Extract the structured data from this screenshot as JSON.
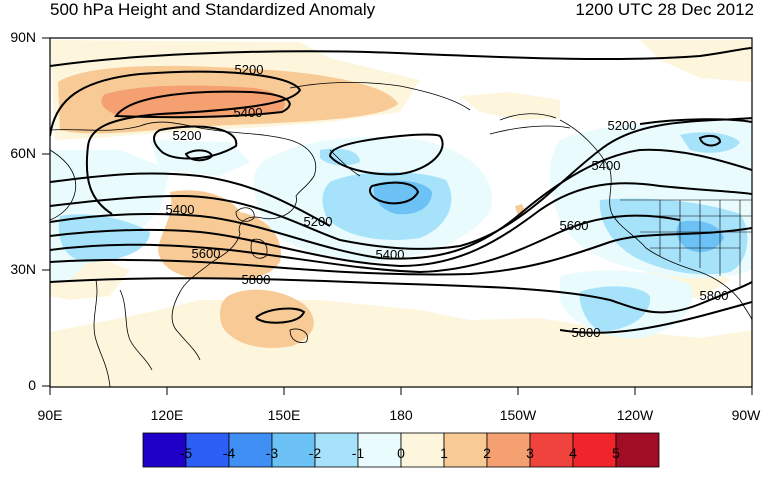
{
  "title": "500 hPa Height and Standardized Anomaly",
  "datetime": "1200 UTC 28 Dec 2012",
  "lat_labels": [
    "90N",
    "60N",
    "30N",
    "0"
  ],
  "lon_labels": [
    "90E",
    "120E",
    "150E",
    "180",
    "150W",
    "120W",
    "90W"
  ],
  "contour_labels": [
    "5200",
    "5400",
    "5200",
    "5400",
    "5200",
    "5400",
    "5600",
    "5800",
    "5200",
    "5400",
    "5600",
    "5800",
    "5800"
  ],
  "colorbar": {
    "labels": [
      "-5",
      "-4",
      "-3",
      "-2",
      "-1",
      "0",
      "1",
      "2",
      "3",
      "4",
      "5"
    ],
    "colors": [
      "#1e00c8",
      "#2d5ff6",
      "#3f8ff5",
      "#6cc2f5",
      "#a6e3fb",
      "#e9fbfd",
      "#fdf6dd",
      "#f8cb96",
      "#f5a071",
      "#f1433d",
      "#f0242c",
      "#a10d25"
    ]
  }
}
